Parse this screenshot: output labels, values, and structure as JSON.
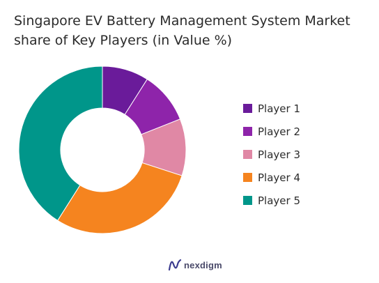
{
  "chart_data": {
    "type": "pie",
    "variant": "donut",
    "title": "Singapore EV Battery Management System Market share of Key Players (in Value %)",
    "categories": [
      "Player 1",
      "Player 2",
      "Player 3",
      "Player 4",
      "Player 5"
    ],
    "values": [
      9,
      10,
      11,
      29,
      41
    ],
    "colors": [
      "#6a1b9a",
      "#8e24aa",
      "#e088a5",
      "#f5841f",
      "#00968a"
    ],
    "legend_position": "right"
  },
  "brand": {
    "name": "nexdigm",
    "color": "#3b3b8f"
  }
}
